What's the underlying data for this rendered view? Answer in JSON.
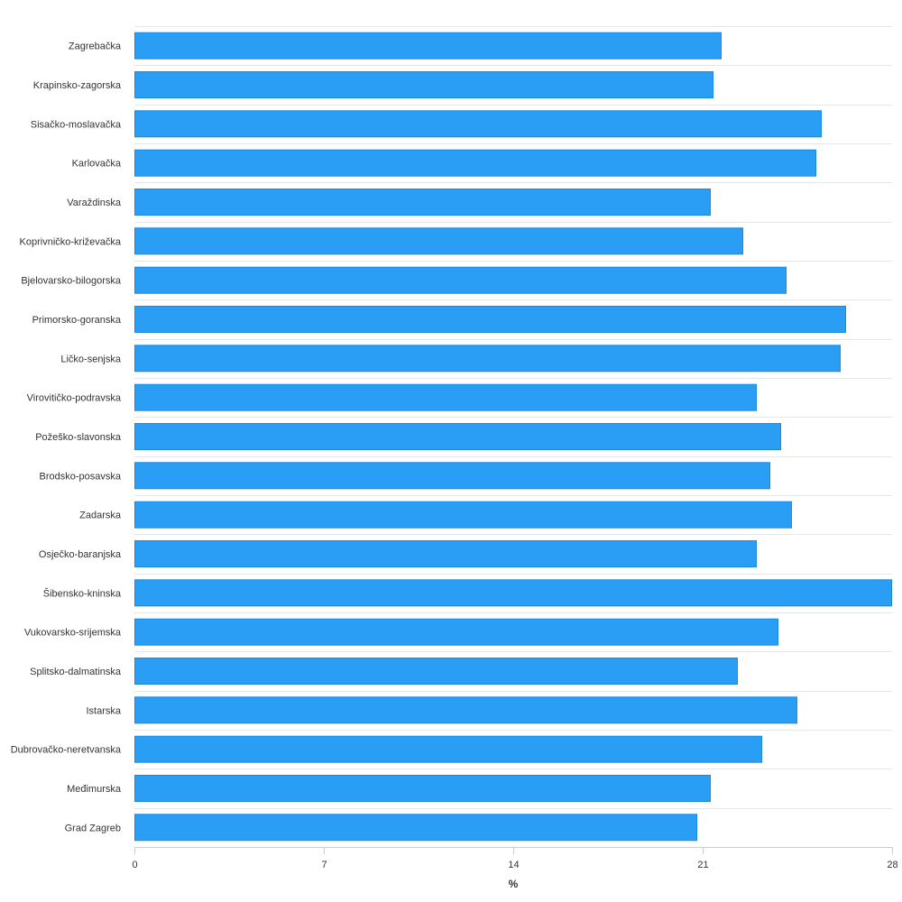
{
  "chart_data": {
    "type": "bar",
    "orientation": "horizontal",
    "categories": [
      "Zagrebačka",
      "Krapinsko-zagorska",
      "Sisačko-moslavačka",
      "Karlovačka",
      "Varaždinska",
      "Koprivničko-križevačka",
      "Bjelovarsko-bilogorska",
      "Primorsko-goranska",
      "Ličko-senjska",
      "Virovitičko-podravska",
      "Požeško-slavonska",
      "Brodsko-posavska",
      "Zadarska",
      "Osječko-baranjska",
      "Šibensko-kninska",
      "Vukovarsko-srijemska",
      "Splitsko-dalmatinska",
      "Istarska",
      "Dubrovačko-neretvanska",
      "Međimurska",
      "Grad Zagreb"
    ],
    "series": [
      {
        "values": [
          21.7,
          21.4,
          25.4,
          25.2,
          21.3,
          22.5,
          24.1,
          26.3,
          26.1,
          23.0,
          23.9,
          23.5,
          24.3,
          23.0,
          28.0,
          23.8,
          22.3,
          24.5,
          23.2,
          21.3,
          20.8
        ]
      }
    ],
    "xlabel": "%",
    "ylabel": "",
    "xlim": [
      0,
      28
    ],
    "ticks": [
      "0",
      "7",
      "14",
      "21",
      "28"
    ],
    "tick_values": [
      0,
      7,
      14,
      21,
      28
    ],
    "grid": true,
    "legend": "none",
    "colors": {
      "bar_fill": "#2a9df4",
      "bar_stroke": "#1a8ae0"
    }
  }
}
